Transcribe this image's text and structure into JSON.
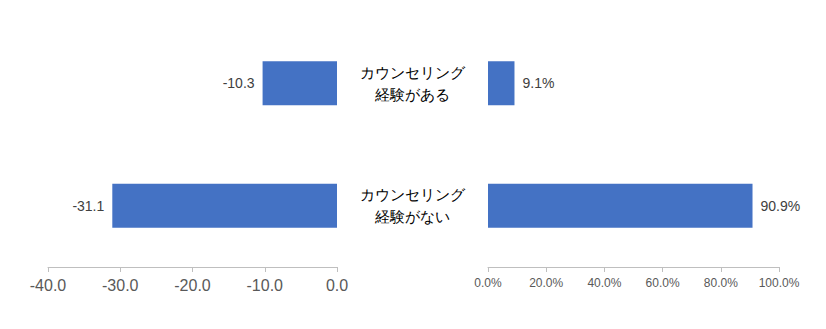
{
  "chart_data": [
    {
      "type": "bar",
      "orientation": "horizontal",
      "categories": [
        "カウンセリング\n経験がある",
        "カウンセリング\n経験がない"
      ],
      "values": [
        -10.3,
        -31.1
      ],
      "color": "#4472c4",
      "data_labels": true,
      "xlim": [
        -40,
        0
      ],
      "xticks": [
        {
          "value": -40,
          "label": "-40.0"
        },
        {
          "value": -30,
          "label": "-30.0"
        },
        {
          "value": -20,
          "label": "-20.0"
        },
        {
          "value": -10,
          "label": "-10.0"
        },
        {
          "value": 0,
          "label": "0.0"
        }
      ],
      "grid": false
    },
    {
      "type": "bar",
      "orientation": "horizontal",
      "values": [
        9.1,
        90.9
      ],
      "value_labels": [
        "9.1%",
        "90.9%"
      ],
      "color": "#4472c4",
      "data_labels": true,
      "xlim": [
        0,
        100
      ],
      "xticks": [
        {
          "value": 0,
          "label": "0.0%"
        },
        {
          "value": 20,
          "label": "20.0%"
        },
        {
          "value": 40,
          "label": "40.0%"
        },
        {
          "value": 60,
          "label": "60.0%"
        },
        {
          "value": 80,
          "label": "80.0%"
        },
        {
          "value": 100,
          "label": "100.0%"
        }
      ],
      "grid": false
    }
  ]
}
